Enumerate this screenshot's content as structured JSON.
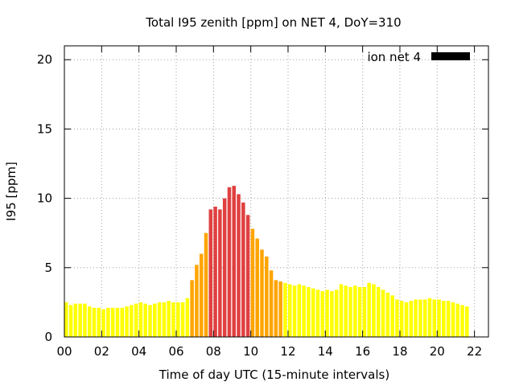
{
  "chart_data": {
    "type": "bar",
    "title": "Total I95 zenith [ppm] on NET 4, DoY=310",
    "xlabel": "Time of day UTC (15-minute intervals)",
    "ylabel": "I95 [ppm]",
    "legend": {
      "label": "ion net 4",
      "placement": "top-right",
      "swatch_color": "#000000"
    },
    "ylim": [
      0,
      21
    ],
    "xlim": [
      0,
      22.75
    ],
    "y_ticks": [
      "0",
      "5",
      "10",
      "15",
      "20"
    ],
    "x_ticks": [
      "00",
      "02",
      "04",
      "06",
      "08",
      "10",
      "12",
      "14",
      "16",
      "18",
      "20",
      "22"
    ],
    "grid": true,
    "bar_interval_hours": 0.25,
    "color_thresholds": {
      "orange_at": 4.0,
      "red_at": 8.0
    },
    "colors": {
      "low": "#ffff00",
      "medium": "#ffa500",
      "high": "#e04040"
    },
    "values": [
      2.5,
      2.3,
      2.4,
      2.4,
      2.4,
      2.2,
      2.1,
      2.1,
      2.0,
      2.1,
      2.1,
      2.1,
      2.1,
      2.2,
      2.3,
      2.4,
      2.5,
      2.4,
      2.3,
      2.4,
      2.5,
      2.5,
      2.6,
      2.5,
      2.5,
      2.5,
      2.8,
      4.1,
      5.2,
      6.0,
      7.5,
      9.2,
      9.4,
      9.2,
      10.0,
      10.8,
      10.9,
      10.3,
      9.7,
      8.8,
      7.8,
      7.1,
      6.3,
      5.8,
      4.8,
      4.1,
      4.0,
      3.9,
      3.8,
      3.7,
      3.8,
      3.7,
      3.6,
      3.5,
      3.4,
      3.3,
      3.4,
      3.3,
      3.4,
      3.8,
      3.7,
      3.6,
      3.7,
      3.6,
      3.6,
      3.9,
      3.8,
      3.6,
      3.4,
      3.2,
      3.0,
      2.7,
      2.6,
      2.5,
      2.6,
      2.7,
      2.7,
      2.7,
      2.8,
      2.7,
      2.7,
      2.6,
      2.6,
      2.5,
      2.4,
      2.3,
      2.2
    ]
  }
}
